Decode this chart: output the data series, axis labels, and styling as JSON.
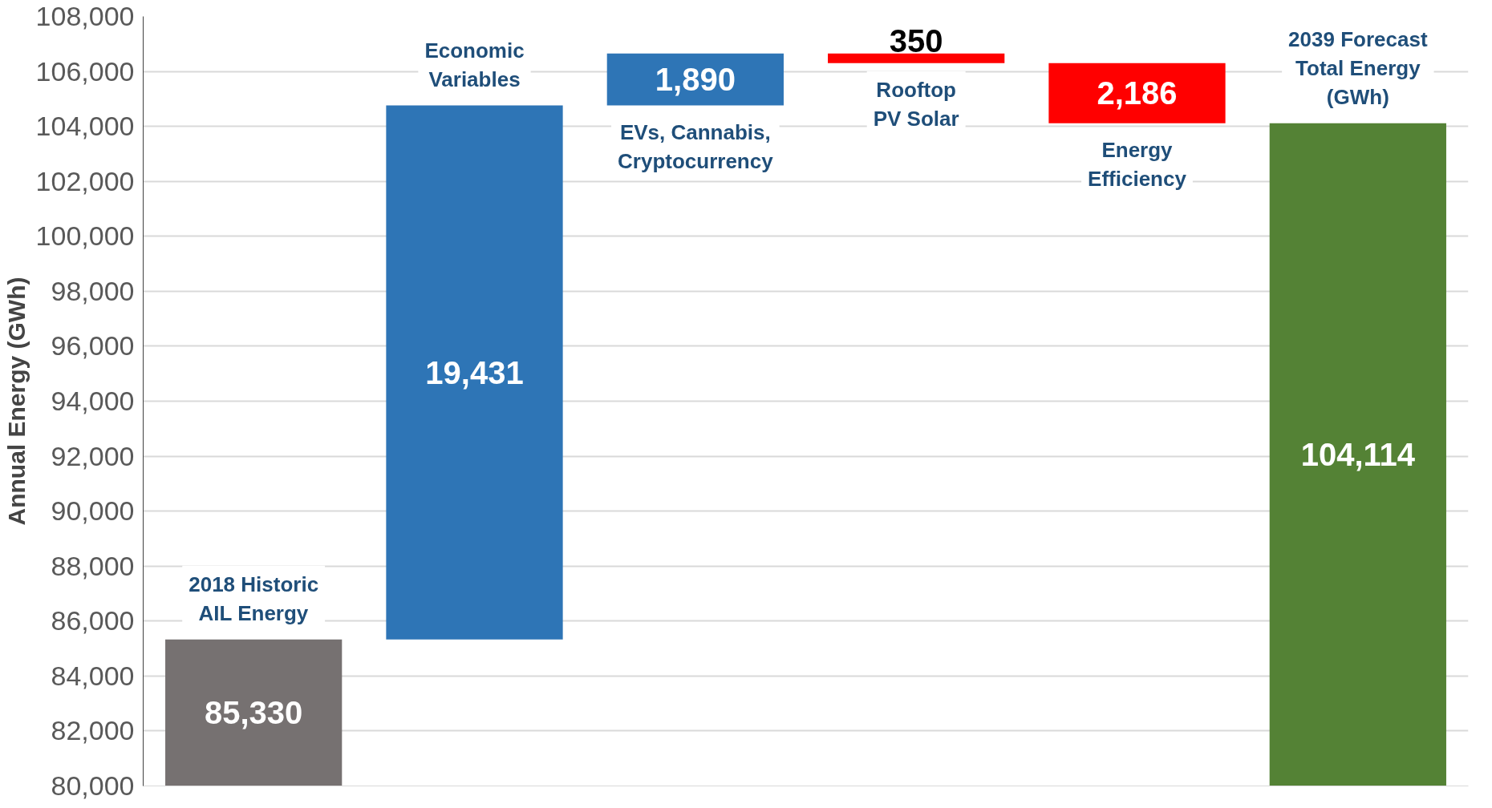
{
  "chart_data": {
    "type": "bar",
    "ylabel": "Annual Energy (GWh)",
    "categories": [
      "2018 Historic\nAIL Energy",
      "Economic\nVariables",
      "EVs, Cannabis,\nCryptocurrency",
      "Rooftop\nPV Solar",
      "Energy\nEfficiency",
      "2039 Forecast\nTotal Energy\n(GWh)"
    ],
    "values": [
      85330,
      19431,
      1890,
      -350,
      -2186,
      104114
    ],
    "base": [
      null,
      85330,
      104761,
      106651,
      106301,
      null
    ],
    "colors": [
      "#767171",
      "#2e75b6",
      "#2e75b6",
      "#ff0000",
      "#ff0000",
      "#548235"
    ],
    "value_labels": [
      "85,330",
      "19,431",
      "1,890",
      "350",
      "2,186",
      "104,114"
    ],
    "ylim": [
      80000,
      108000
    ],
    "yticks": [
      {
        "value": 80000,
        "label": "80,000"
      },
      {
        "value": 82000,
        "label": "82,000"
      },
      {
        "value": 84000,
        "label": "84,000"
      },
      {
        "value": 86000,
        "label": "86,000"
      },
      {
        "value": 88000,
        "label": "88,000"
      },
      {
        "value": 90000,
        "label": "90,000"
      },
      {
        "value": 92000,
        "label": "92,000"
      },
      {
        "value": 94000,
        "label": "94,000"
      },
      {
        "value": 96000,
        "label": "96,000"
      },
      {
        "value": 98000,
        "label": "98,000"
      },
      {
        "value": 100000,
        "label": "100,000"
      },
      {
        "value": 102000,
        "label": "102,000"
      },
      {
        "value": 104000,
        "label": "104,000"
      },
      {
        "value": 106000,
        "label": "106,000"
      },
      {
        "value": 108000,
        "label": "108,000"
      }
    ],
    "grid": "y",
    "tick_labels": "y"
  }
}
